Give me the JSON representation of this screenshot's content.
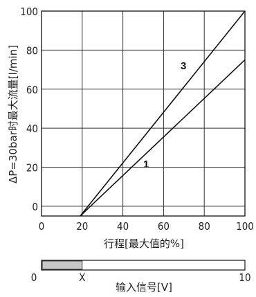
{
  "chart_data": {
    "type": "line",
    "xlabel": "行程[最大值的%]",
    "ylabel": "ΔP=30bar时最大流量[l/min]",
    "xlim": [
      0,
      100
    ],
    "ylim": [
      -5,
      100
    ],
    "x_ticks": [
      "0",
      "20",
      "40",
      "60",
      "80",
      "100"
    ],
    "y_ticks": [
      "0",
      "20",
      "40",
      "60",
      "80",
      "100"
    ],
    "grid": true,
    "series": [
      {
        "name": "1",
        "x": [
          19,
          100
        ],
        "y": [
          -5,
          75
        ]
      },
      {
        "name": "3",
        "x": [
          19,
          100
        ],
        "y": [
          -5,
          100
        ]
      }
    ],
    "signal_bar": {
      "label": "输入信号[V]",
      "start_label": "0",
      "marker_label": "X",
      "end_label": "10",
      "shaded_fraction": 0.2
    }
  }
}
